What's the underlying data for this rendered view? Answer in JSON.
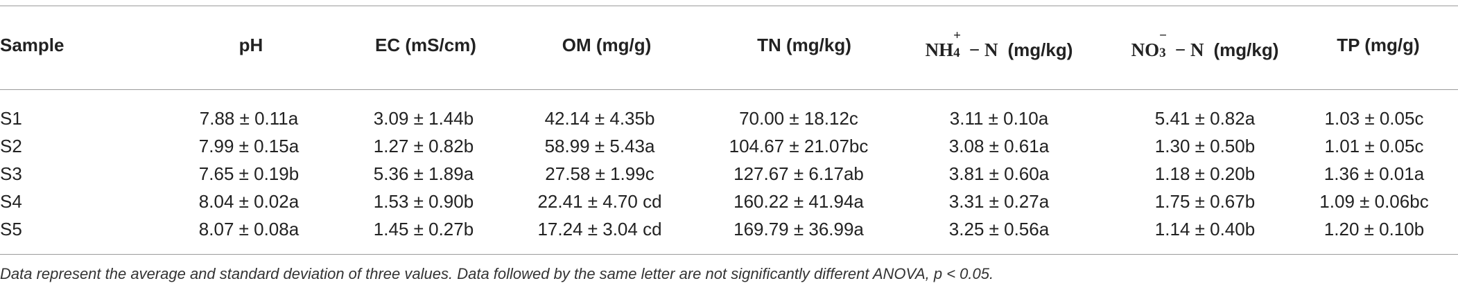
{
  "table": {
    "headers": {
      "sample": "Sample",
      "ph": "pH",
      "ec": "EC (mS/cm)",
      "om": "OM (mg/g)",
      "tn": "TN (mg/kg)",
      "nh4_base": "NH",
      "nh4_sub": "4",
      "nh4_sup": "+",
      "nh4_tail": " − N",
      "nh4_unit": "(mg/kg)",
      "no3_base": "NO",
      "no3_sub": "3",
      "no3_sup": "−",
      "no3_tail": " − N",
      "no3_unit": "(mg/kg)",
      "tp": "TP (mg/g)"
    },
    "rows": [
      {
        "sample": "S1",
        "ph": "7.88 ± 0.11a",
        "ec": "3.09 ± 1.44b",
        "om": "42.14 ± 4.35b",
        "tn": "70.00 ± 18.12c",
        "nh4": "3.11 ± 0.10a",
        "no3": "5.41 ± 0.82a",
        "tp": "1.03 ± 0.05c"
      },
      {
        "sample": "S2",
        "ph": "7.99 ± 0.15a",
        "ec": "1.27 ± 0.82b",
        "om": "58.99 ± 5.43a",
        "tn": "104.67 ± 21.07bc",
        "nh4": "3.08 ± 0.61a",
        "no3": "1.30 ± 0.50b",
        "tp": "1.01 ± 0.05c"
      },
      {
        "sample": "S3",
        "ph": "7.65 ± 0.19b",
        "ec": "5.36 ± 1.89a",
        "om": "27.58 ± 1.99c",
        "tn": "127.67 ± 6.17ab",
        "nh4": "3.81 ± 0.60a",
        "no3": "1.18 ± 0.20b",
        "tp": "1.36 ± 0.01a"
      },
      {
        "sample": "S4",
        "ph": "8.04 ± 0.02a",
        "ec": "1.53 ± 0.90b",
        "om": "22.41 ± 4.70 cd",
        "tn": "160.22 ± 41.94a",
        "nh4": "3.31 ± 0.27a",
        "no3": "1.75 ± 0.67b",
        "tp": "1.09 ± 0.06bc"
      },
      {
        "sample": "S5",
        "ph": "8.07 ± 0.08a",
        "ec": "1.45 ± 0.27b",
        "om": "17.24 ± 3.04 cd",
        "tn": "169.79 ± 36.99a",
        "nh4": "3.25 ± 0.56a",
        "no3": "1.14 ± 0.40b",
        "tp": "1.20 ± 0.10b"
      }
    ],
    "footnote": "Data represent the average and standard deviation of three values. Data followed by the same letter are not significantly different ANOVA, p < 0.05."
  }
}
